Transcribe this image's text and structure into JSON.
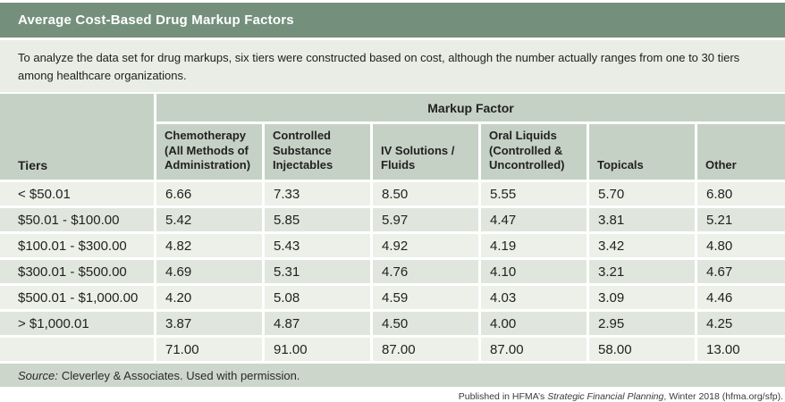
{
  "title": "Average Cost-Based Drug Markup Factors",
  "description": "To analyze the data set for drug markups, six tiers were constructed based on cost, although the number actually ranges from one to 30 tiers among healthcare organizations.",
  "table": {
    "group_header": "Markup Factor",
    "columns": [
      "Tiers",
      "Chemotherapy (All Methods of Administration)",
      "Controlled Substance Injectables",
      "IV Solutions / Fluids",
      "Oral Liquids (Controlled & Uncontrolled)",
      "Topicals",
      "Other"
    ],
    "rows": [
      {
        "tier": "< $50.01",
        "values": [
          "6.66",
          "7.33",
          "8.50",
          "5.55",
          "5.70",
          "6.80"
        ]
      },
      {
        "tier": "$50.01 - $100.00",
        "values": [
          "5.42",
          "5.85",
          "5.97",
          "4.47",
          "3.81",
          "5.21"
        ]
      },
      {
        "tier": "$100.01 - $300.00",
        "values": [
          "4.82",
          "5.43",
          "4.92",
          "4.19",
          "3.42",
          "4.80"
        ]
      },
      {
        "tier": "$300.01 - $500.00",
        "values": [
          "4.69",
          "5.31",
          "4.76",
          "4.10",
          "3.21",
          "4.67"
        ]
      },
      {
        "tier": "$500.01 - $1,000.00",
        "values": [
          "4.20",
          "5.08",
          "4.59",
          "4.03",
          "3.09",
          "4.46"
        ]
      },
      {
        "tier": "> $1,000.01",
        "values": [
          "3.87",
          "4.87",
          "4.50",
          "4.00",
          "2.95",
          "4.25"
        ]
      },
      {
        "tier": "",
        "values": [
          "71.00",
          "91.00",
          "87.00",
          "87.00",
          "58.00",
          "13.00"
        ]
      }
    ]
  },
  "source": {
    "label": "Source:",
    "text": "Cleverley & Associates. Used with permission."
  },
  "published": {
    "prefix": "Published in HFMA’s ",
    "italic": "Strategic Financial Planning",
    "suffix": ", Winter 2018 (hfma.org/sfp)."
  },
  "colors": {
    "title_bar": "#74907c",
    "description_bg": "#e9ede6",
    "header_bg": "#c6d1c5",
    "row_light": "#edf0e9",
    "row_dark": "#e0e6dd",
    "source_bg": "#cdd6cb",
    "text": "#222220",
    "title_text": "#ffffff"
  },
  "chart_data": {
    "type": "table",
    "title": "Average Cost-Based Drug Markup Factors",
    "subtitle": "To analyze the data set for drug markups, six tiers were constructed based on cost, although the number actually ranges from one to 30 tiers among healthcare organizations.",
    "column_group_header": "Markup Factor",
    "row_header_label": "Tiers",
    "categories": [
      "Chemotherapy (All Methods of Administration)",
      "Controlled Substance Injectables",
      "IV Solutions / Fluids",
      "Oral Liquids (Controlled & Uncontrolled)",
      "Topicals",
      "Other"
    ],
    "series": [
      {
        "name": "< $50.01",
        "values": [
          6.66,
          7.33,
          8.5,
          5.55,
          5.7,
          6.8
        ]
      },
      {
        "name": "$50.01 - $100.00",
        "values": [
          5.42,
          5.85,
          5.97,
          4.47,
          3.81,
          5.21
        ]
      },
      {
        "name": "$100.01 - $300.00",
        "values": [
          4.82,
          5.43,
          4.92,
          4.19,
          3.42,
          4.8
        ]
      },
      {
        "name": "$300.01 - $500.00",
        "values": [
          4.69,
          5.31,
          4.76,
          4.1,
          3.21,
          4.67
        ]
      },
      {
        "name": "$500.01 - $1,000.00",
        "values": [
          4.2,
          5.08,
          4.59,
          4.03,
          3.09,
          4.46
        ]
      },
      {
        "name": "> $1,000.01",
        "values": [
          3.87,
          4.87,
          4.5,
          4.0,
          2.95,
          4.25
        ]
      },
      {
        "name": "(unlabeled bottom row)",
        "values": [
          71.0,
          91.0,
          87.0,
          87.0,
          58.0,
          13.0
        ]
      }
    ],
    "source": "Source: Cleverley & Associates. Used with permission.",
    "footnote": "Published in HFMA’s Strategic Financial Planning, Winter 2018 (hfma.org/sfp)."
  }
}
